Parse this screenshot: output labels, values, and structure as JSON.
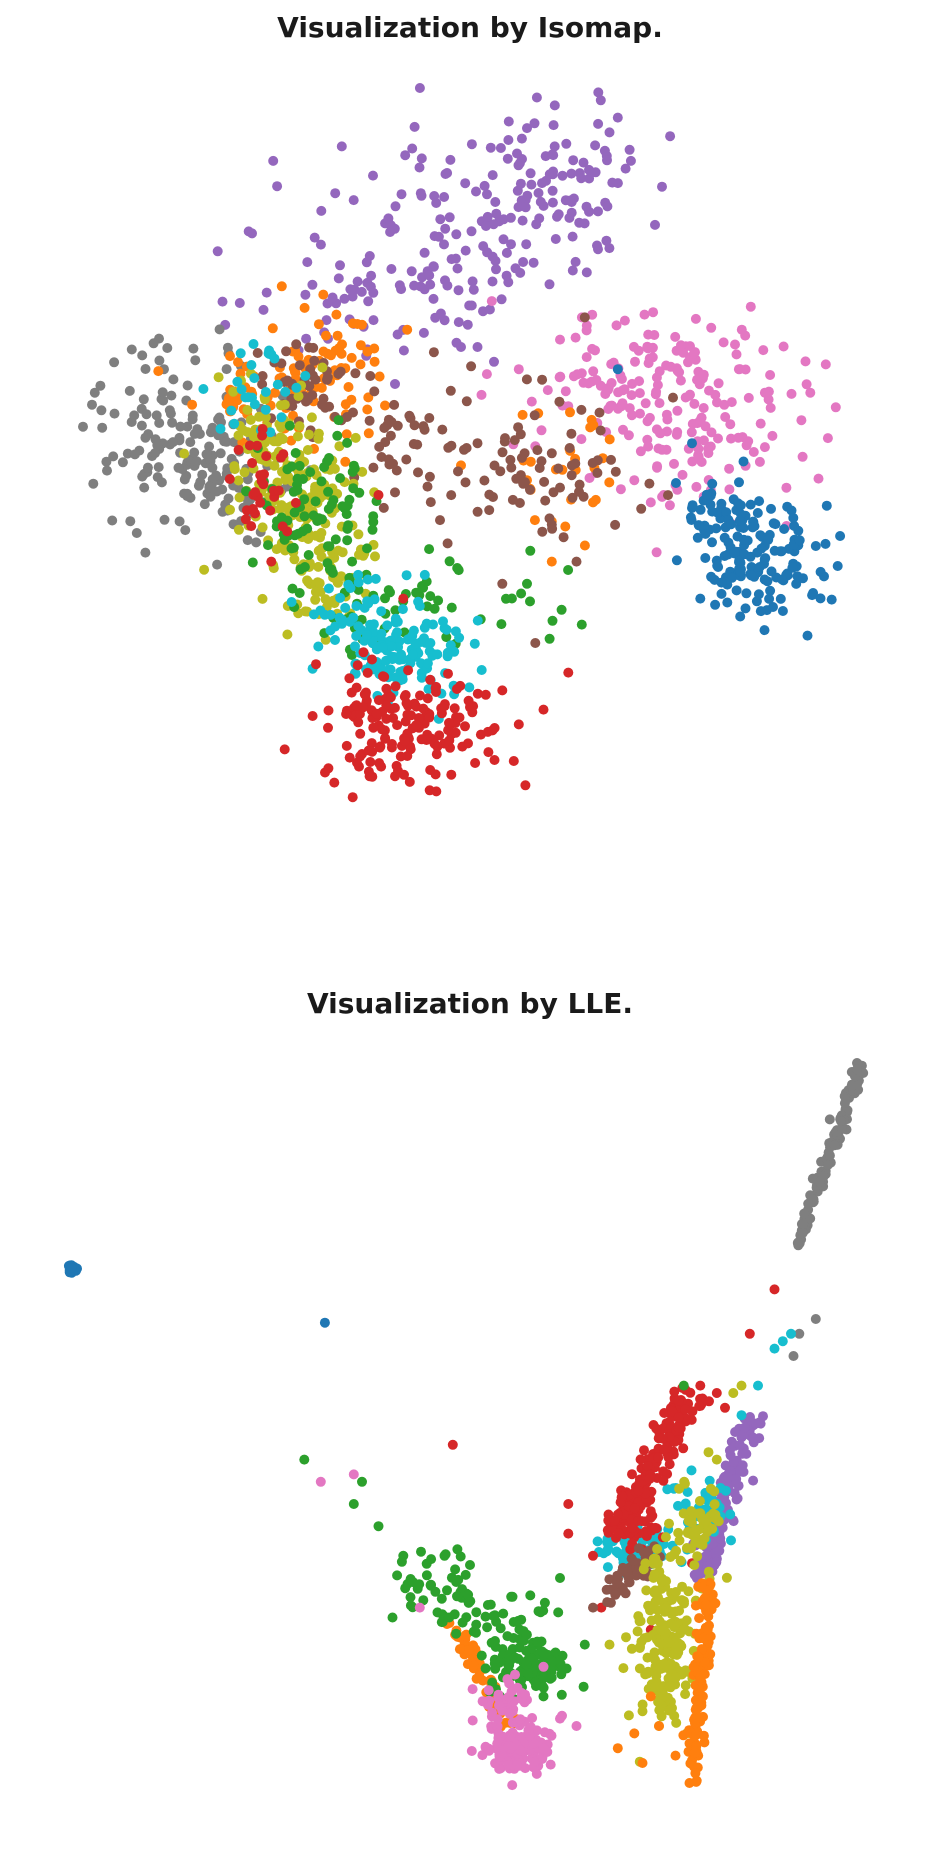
{
  "palette": {
    "c0": "#1f77b4",
    "c1": "#ff7f0e",
    "c2": "#2ca02c",
    "c3": "#d62728",
    "c4": "#9467bd",
    "c5": "#8c564b",
    "c6": "#e377c2",
    "c7": "#7f7f7f",
    "c8": "#bcbd22",
    "c9": "#17becf"
  },
  "chart_data": [
    {
      "type": "scatter",
      "title": "Visualization by Isomap.",
      "xlabel": "",
      "ylabel": "",
      "axes": "off",
      "grid": false,
      "legend": "none",
      "xlim": [
        0,
        100
      ],
      "ylim": [
        0,
        100
      ],
      "series": [
        {
          "color": "c4",
          "count": 240,
          "clusters": [
            [
              48,
              83,
              9,
              6,
              0.3
            ],
            [
              60,
              88,
              6,
              5,
              0.35
            ],
            [
              40,
              73,
              9,
              5,
              0.35
            ]
          ],
          "points": [
            [
              67,
              96
            ],
            [
              66,
              94
            ],
            [
              50,
              65
            ],
            [
              52,
              63
            ],
            [
              48,
              65
            ],
            [
              40,
              60
            ]
          ]
        },
        {
          "color": "c6",
          "count": 220,
          "clusters": [
            [
              74,
              58,
              8,
              5,
              0.55
            ],
            [
              66,
              61,
              6,
              4,
              0.25
            ],
            [
              78,
              50,
              5,
              4,
              0.2
            ]
          ],
          "points": [
            [
              60,
              66
            ],
            [
              55,
              62
            ],
            [
              61,
              57
            ],
            [
              69,
              47
            ],
            [
              71,
              44
            ]
          ]
        },
        {
          "color": "c0",
          "count": 170,
          "clusters": [
            [
              84,
              36,
              4,
              4,
              0.75
            ],
            [
              80,
              42,
              3,
              3,
              0.25
            ]
          ],
          "points": [
            [
              92,
              34
            ],
            [
              90,
              26
            ],
            [
              77,
              31
            ],
            [
              67,
              62
            ],
            [
              76,
              52
            ]
          ]
        },
        {
          "color": "c7",
          "count": 180,
          "clusters": [
            [
              14,
              53,
              6,
              6,
              0.7
            ],
            [
              20,
              47,
              4,
              4,
              0.3
            ]
          ],
          "points": [
            [
              6,
              56
            ],
            [
              12,
              62
            ],
            [
              9,
              51
            ]
          ]
        },
        {
          "color": "c1",
          "count": 130,
          "clusters": [
            [
              32,
              61,
              4,
              4,
              0.55
            ],
            [
              22,
              58,
              4,
              3,
              0.25
            ],
            [
              60,
              47,
              4,
              5,
              0.2
            ]
          ],
          "points": [
            [
              36,
              68
            ],
            [
              48,
              49
            ],
            [
              56,
              47
            ],
            [
              59,
              36
            ],
            [
              64,
              44
            ]
          ]
        },
        {
          "color": "c5",
          "count": 160,
          "clusters": [
            [
              29,
              60,
              3,
              3,
              0.3
            ],
            [
              56,
              48,
              6,
              5,
              0.45
            ],
            [
              40,
              52,
              4,
              6,
              0.25
            ]
          ],
          "points": [
            [
              63,
              69
            ],
            [
              60,
              46
            ],
            [
              59,
              41
            ],
            [
              53,
              33
            ],
            [
              57,
              25
            ],
            [
              62,
              36
            ],
            [
              50,
              52
            ]
          ]
        },
        {
          "color": "c8",
          "count": 230,
          "clusters": [
            [
              28,
              44,
              4,
              5,
              0.5
            ],
            [
              24,
              54,
              3,
              4,
              0.25
            ],
            [
              31,
              34,
              3,
              3,
              0.25
            ]
          ],
          "points": [
            [
              20,
              43
            ],
            [
              27,
              30
            ],
            [
              33,
              31
            ]
          ]
        },
        {
          "color": "c2",
          "count": 140,
          "clusters": [
            [
              30,
              42,
              4,
              5,
              0.6
            ],
            [
              36,
              29,
              3,
              3,
              0.2
            ],
            [
              50,
              31,
              5,
              3,
              0.2
            ]
          ],
          "points": [
            [
              32,
              50
            ],
            [
              33,
              53
            ],
            [
              56,
              33
            ]
          ]
        },
        {
          "color": "c9",
          "count": 180,
          "clusters": [
            [
              42,
              23,
              4,
              3,
              0.6
            ],
            [
              35,
              28,
              3,
              3,
              0.25
            ],
            [
              24,
              59,
              3,
              3,
              0.15
            ]
          ],
          "points": [
            [
              46,
              27
            ],
            [
              49,
              19
            ],
            [
              43,
              30
            ],
            [
              25,
              64
            ]
          ]
        },
        {
          "color": "c3",
          "count": 200,
          "clusters": [
            [
              42,
              14,
              6,
              4,
              0.85
            ],
            [
              24,
              47,
              2,
              4,
              0.15
            ]
          ],
          "points": [
            [
              36,
              10
            ],
            [
              40,
              7
            ],
            [
              51,
              18
            ],
            [
              58,
              16
            ],
            [
              55,
              14
            ],
            [
              38,
              45
            ],
            [
              41,
              31
            ],
            [
              25,
              36
            ],
            [
              61,
              21
            ]
          ]
        }
      ]
    },
    {
      "type": "scatter",
      "title": "Visualization by LLE.",
      "xlabel": "",
      "ylabel": "",
      "axes": "off",
      "grid": false,
      "legend": "none",
      "xlim": [
        0,
        100
      ],
      "ylim": [
        0,
        100
      ],
      "series": [
        {
          "color": "c0",
          "count": 25,
          "clusters": [
            [
              0.9,
              71.8,
              0.3,
              0.25,
              1.0
            ]
          ],
          "points": [
            [
              31.5,
              64.5
            ]
          ]
        },
        {
          "color": "c7",
          "count": 120,
          "lines": [
            [
              88.5,
              74.5,
              96.5,
              99.5,
              0.4,
              1.0
            ]
          ],
          "points": [
            [
              91,
              65
            ],
            [
              89,
              63
            ],
            [
              88.3,
              60
            ]
          ]
        },
        {
          "color": "c4",
          "count": 150,
          "lines": [
            [
              77,
              30,
              83.5,
              52,
              0.9,
              1.0
            ]
          ],
          "points": [
            [
              82,
              49
            ],
            [
              83,
              50
            ]
          ]
        },
        {
          "color": "c9",
          "count": 130,
          "clusters": [
            [
              70,
              34,
              2.4,
              1.6,
              0.55
            ],
            [
              77,
              39,
              1.6,
              2.2,
              0.35
            ]
          ],
          "points": [
            [
              86,
              61
            ],
            [
              87,
              62
            ],
            [
              84,
              56
            ],
            [
              82,
              52
            ],
            [
              88,
              63
            ],
            [
              73,
              42
            ]
          ]
        },
        {
          "color": "c3",
          "count": 200,
          "lines": [
            [
              67,
              37,
              76,
              55,
              1.2,
              0.8
            ]
          ],
          "clusters": [
            [
              69,
              37,
              2,
              1.5,
              0.2
            ]
          ],
          "points": [
            [
              86,
              69
            ],
            [
              83,
              63
            ],
            [
              77,
              56
            ],
            [
              79,
              55
            ],
            [
              80,
              53
            ],
            [
              47,
              48
            ],
            [
              61,
              40
            ],
            [
              61,
              36
            ],
            [
              64,
              33
            ],
            [
              65,
              26
            ],
            [
              71,
              23
            ],
            [
              76,
              32
            ]
          ]
        },
        {
          "color": "c5",
          "count": 45,
          "lines": [
            [
              66,
              27,
              71,
              34,
              0.9,
              1.0
            ]
          ],
          "points": [
            [
              64,
              26
            ]
          ]
        },
        {
          "color": "c8",
          "count": 240,
          "clusters": [
            [
              73,
              22,
              1.6,
              6,
              0.8
            ],
            [
              77,
              37,
              1.5,
              3,
              0.2
            ]
          ],
          "points": [
            [
              81,
              55
            ],
            [
              82,
              56
            ],
            [
              68,
              22
            ],
            [
              66,
              21
            ],
            [
              70,
              12
            ],
            [
              72,
              10
            ],
            [
              79,
              46
            ],
            [
              78,
              47
            ]
          ]
        },
        {
          "color": "c1",
          "count": 190,
          "lines": [
            [
              76,
              2,
              78,
              30,
              0.5,
              0.65
            ],
            [
              47,
              24,
              54,
              10,
              0.5,
              0.35
            ]
          ],
          "points": [
            [
              67,
              7
            ],
            [
              69,
              9
            ],
            [
              70,
              5
            ],
            [
              72,
              10
            ],
            [
              74,
              6
            ],
            [
              71,
              14
            ]
          ]
        },
        {
          "color": "c2",
          "count": 190,
          "clusters": [
            [
              56,
              18,
              2.5,
              2,
              0.6
            ],
            [
              50,
              25,
              4,
              2,
              0.25
            ],
            [
              44,
              30,
              3,
              2,
              0.15
            ]
          ],
          "points": [
            [
              29,
              46
            ],
            [
              36,
              43
            ],
            [
              35,
              40
            ],
            [
              38,
              37
            ],
            [
              41,
              33
            ],
            [
              46,
              33
            ],
            [
              60,
              30
            ],
            [
              63,
              21
            ],
            [
              75,
              56
            ],
            [
              58,
              14
            ]
          ]
        },
        {
          "color": "c6",
          "count": 170,
          "clusters": [
            [
              55,
              7,
              2,
              2,
              0.8
            ],
            [
              53,
              13,
              2,
              1.5,
              0.2
            ]
          ],
          "points": [
            [
              31,
              43
            ],
            [
              35,
              44
            ],
            [
              43,
              26
            ],
            [
              58,
              18
            ],
            [
              60,
              11
            ],
            [
              62,
              10
            ]
          ]
        }
      ]
    }
  ]
}
